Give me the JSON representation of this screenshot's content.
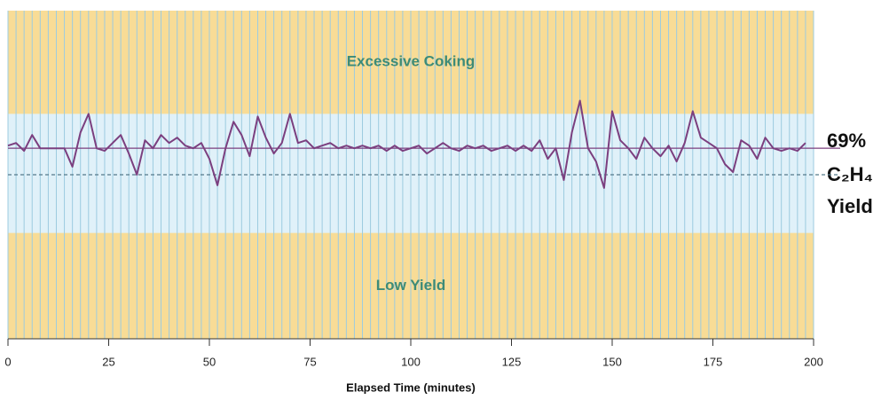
{
  "chart_data": {
    "type": "line",
    "xlabel": "Elapsed Time (minutes)",
    "xlim": [
      0,
      200
    ],
    "xticks": [
      0,
      25,
      50,
      75,
      100,
      125,
      150,
      175,
      200
    ],
    "ylim": [
      61.8,
      74.2
    ],
    "minor_grid_step": 2,
    "normal_band_color": "#e0f1f9",
    "stripe_color": "#9ccbe0",
    "bands": [
      {
        "name": "Excessive Coking",
        "from": 70.3,
        "to": 74.2,
        "color": "#f8dc96"
      },
      {
        "name": "Low Yield",
        "from": 61.8,
        "to": 65.8,
        "color": "#f8dc96"
      }
    ],
    "reference_lines": [
      {
        "value": 69,
        "label": "69%",
        "style": "solid",
        "color": "#7b3f7f"
      },
      {
        "value": 68,
        "style": "dashed",
        "color": "#557a8a"
      }
    ],
    "y_label_lines": [
      "C₂H₄",
      "Yield"
    ],
    "x": [
      0,
      2,
      4,
      6,
      8,
      10,
      12,
      14,
      16,
      18,
      20,
      22,
      24,
      26,
      28,
      30,
      32,
      34,
      36,
      38,
      40,
      42,
      44,
      46,
      48,
      50,
      52,
      54,
      56,
      58,
      60,
      62,
      64,
      66,
      68,
      70,
      72,
      74,
      76,
      78,
      80,
      82,
      84,
      86,
      88,
      90,
      92,
      94,
      96,
      98,
      100,
      102,
      104,
      106,
      108,
      110,
      112,
      114,
      116,
      118,
      120,
      122,
      124,
      126,
      128,
      130,
      132,
      134,
      136,
      138,
      140,
      142,
      144,
      146,
      148,
      150,
      152,
      154,
      156,
      158,
      160,
      162,
      164,
      166,
      168,
      170,
      172,
      174,
      176,
      178,
      180,
      182,
      184,
      186,
      188,
      190,
      192,
      194,
      196,
      198
    ],
    "series": [
      {
        "color": "#7b3f7f",
        "values": [
          69.1,
          69.2,
          68.9,
          69.5,
          69.0,
          69.0,
          69.0,
          69.0,
          68.3,
          69.6,
          70.3,
          69.0,
          68.9,
          69.2,
          69.5,
          68.8,
          68.0,
          69.3,
          69.0,
          69.5,
          69.2,
          69.4,
          69.1,
          69.0,
          69.2,
          68.6,
          67.6,
          69.0,
          70.0,
          69.5,
          68.7,
          70.2,
          69.4,
          68.8,
          69.2,
          70.3,
          69.2,
          69.3,
          69.0,
          69.1,
          69.2,
          69.0,
          69.1,
          69.0,
          69.1,
          69.0,
          69.1,
          68.9,
          69.1,
          68.9,
          69.0,
          69.1,
          68.8,
          69.0,
          69.2,
          69.0,
          68.9,
          69.1,
          69.0,
          69.1,
          68.9,
          69.0,
          69.1,
          68.9,
          69.1,
          68.9,
          69.3,
          68.6,
          69.0,
          67.8,
          69.6,
          70.8,
          69.0,
          68.5,
          67.5,
          70.4,
          69.3,
          69.0,
          68.6,
          69.4,
          69.0,
          68.7,
          69.1,
          68.5,
          69.2,
          70.4,
          69.4,
          69.2,
          69.0,
          68.4,
          68.1,
          69.3,
          69.1,
          68.6,
          69.4,
          69.0,
          68.9,
          69.0,
          68.9,
          69.2
        ]
      }
    ]
  }
}
